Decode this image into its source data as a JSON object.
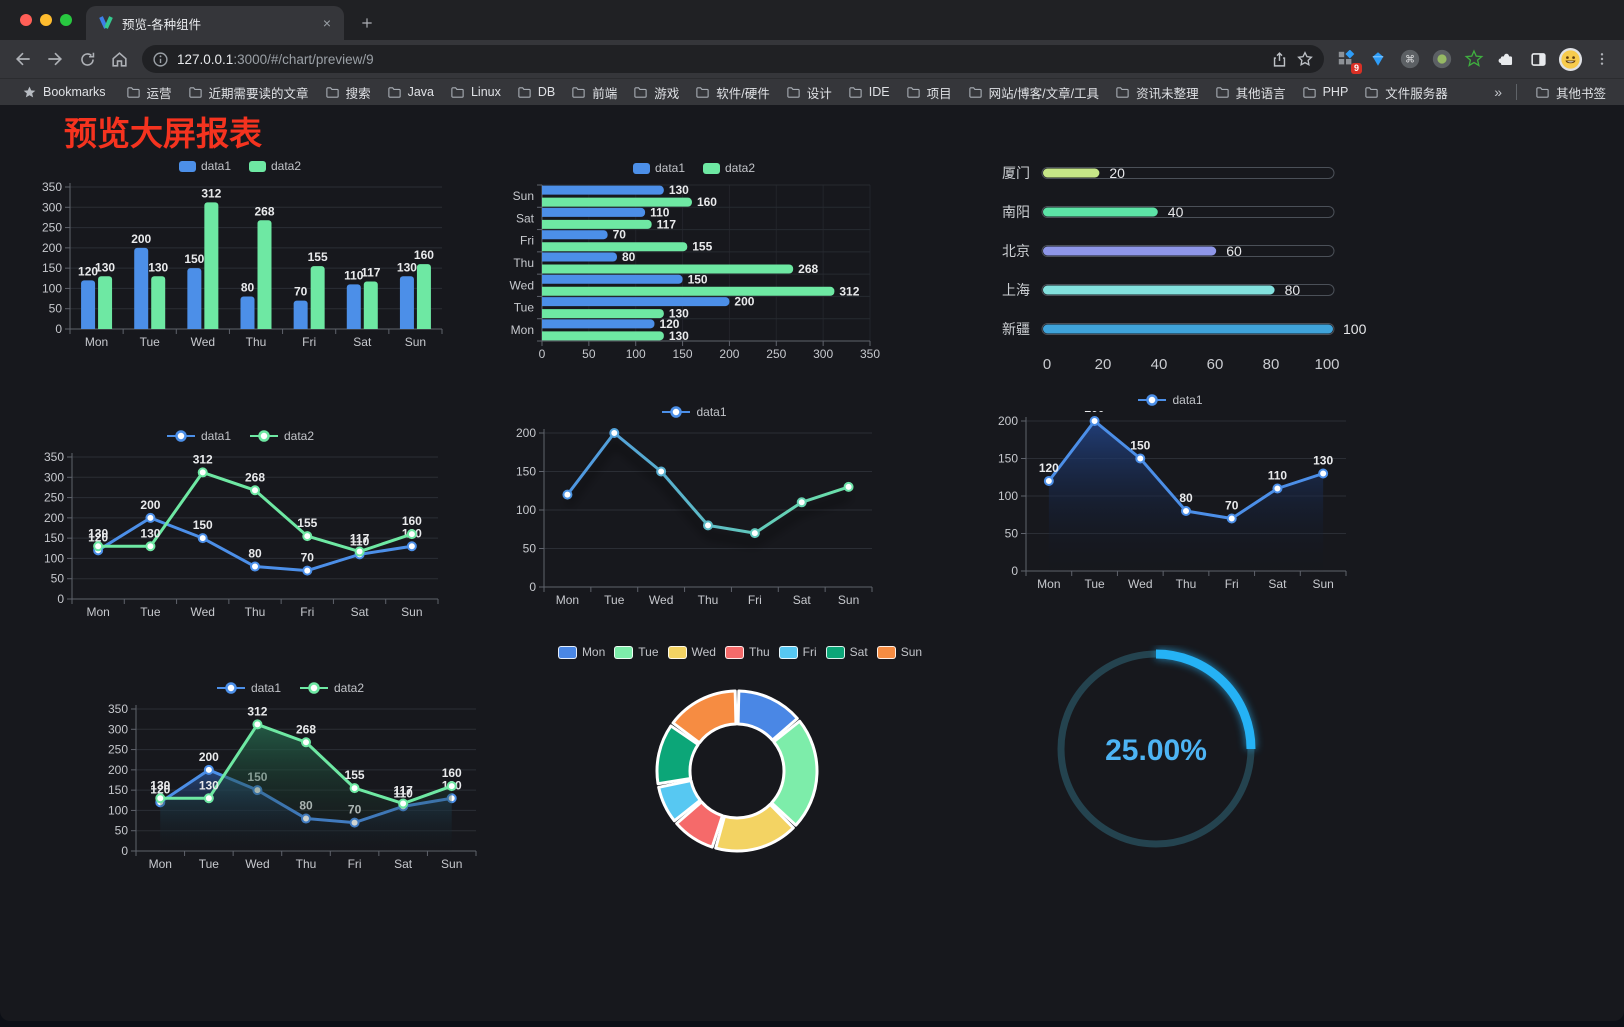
{
  "browser": {
    "traffic_lights": [
      "#ff5f57",
      "#febc2e",
      "#28c840"
    ],
    "tab": {
      "title": "预览-各种组件"
    },
    "url": {
      "host": "127.0.0.1",
      "rest": ":3000/#/chart/preview/9"
    },
    "extension_badge": "9",
    "icons": {
      "close": "×",
      "new_tab": "+",
      "menu": "⋮"
    },
    "bookmarks_label": "Bookmarks",
    "bookmark_folders": [
      "运营",
      "近期需要读的文章",
      "搜索",
      "Java",
      "Linux",
      "DB",
      "前端",
      "游戏",
      "软件/硬件",
      "设计",
      "IDE",
      "项目",
      "网站/博客/文章/工具",
      "资讯未整理",
      "其他语言",
      "PHP",
      "文件服务器"
    ],
    "bookmarks_overflow": "»",
    "other_bookmarks": "其他书签"
  },
  "page": {
    "title": "预览大屏报表",
    "title_color": "#f5331f"
  },
  "chart_data": [
    {
      "cell": "c1",
      "type": "bar",
      "title": "",
      "categories": [
        "Mon",
        "Tue",
        "Wed",
        "Thu",
        "Fri",
        "Sat",
        "Sun"
      ],
      "series": [
        {
          "name": "data1",
          "color": "#4c8fe8",
          "values": [
            120,
            200,
            150,
            80,
            70,
            110,
            130
          ]
        },
        {
          "name": "data2",
          "color": "#6ee8a3",
          "values": [
            130,
            130,
            312,
            268,
            155,
            117,
            160
          ]
        }
      ],
      "ylim": [
        0,
        350
      ],
      "yticks": [
        0,
        50,
        100,
        150,
        200,
        250,
        300,
        350
      ],
      "show_labels": true,
      "legend": {
        "icon": "rect",
        "items": [
          {
            "label": "data1",
            "color": "#4c8fe8"
          },
          {
            "label": "data2",
            "color": "#6ee8a3"
          }
        ]
      }
    },
    {
      "cell": "c2",
      "type": "bar-horizontal",
      "categories_top_to_bottom": [
        "Sun",
        "Sat",
        "Fri",
        "Thu",
        "Wed",
        "Tue",
        "Mon"
      ],
      "series": [
        {
          "name": "data1",
          "color": "#4c8fe8",
          "values": [
            130,
            110,
            70,
            80,
            150,
            200,
            120
          ]
        },
        {
          "name": "data2",
          "color": "#6ee8a3",
          "values": [
            160,
            117,
            155,
            268,
            312,
            130,
            130
          ]
        }
      ],
      "xlim": [
        0,
        350
      ],
      "xticks": [
        0,
        50,
        100,
        150,
        200,
        250,
        300,
        350
      ],
      "show_labels": true,
      "legend": {
        "icon": "rect",
        "items": [
          {
            "label": "data1",
            "color": "#4c8fe8"
          },
          {
            "label": "data2",
            "color": "#6ee8a3"
          }
        ]
      }
    },
    {
      "cell": "c3",
      "type": "progress",
      "max": 100,
      "xticks": [
        0,
        20,
        40,
        60,
        80,
        100
      ],
      "rows": [
        {
          "label": "厦门",
          "value": 20,
          "color": "#c6e687"
        },
        {
          "label": "南阳",
          "value": 40,
          "color": "#5ce3a6"
        },
        {
          "label": "北京",
          "value": 60,
          "color": "#8e96e8"
        },
        {
          "label": "上海",
          "value": 80,
          "color": "#83e1de"
        },
        {
          "label": "新疆",
          "value": 100,
          "color": "#3fa3da"
        }
      ]
    },
    {
      "cell": "c4",
      "type": "line",
      "categories": [
        "Mon",
        "Tue",
        "Wed",
        "Thu",
        "Fri",
        "Sat",
        "Sun"
      ],
      "series": [
        {
          "name": "data1",
          "color": "#4c8fe8",
          "values": [
            120,
            200,
            150,
            80,
            70,
            110,
            130
          ]
        },
        {
          "name": "data2",
          "color": "#6ee8a3",
          "values": [
            130,
            130,
            312,
            268,
            155,
            117,
            160
          ]
        }
      ],
      "ylim": [
        0,
        350
      ],
      "yticks": [
        0,
        50,
        100,
        150,
        200,
        250,
        300,
        350
      ],
      "show_labels": true,
      "legend": {
        "icon": "line",
        "items": [
          {
            "label": "data1",
            "color": "#4c8fe8"
          },
          {
            "label": "data2",
            "color": "#6ee8a3"
          }
        ]
      }
    },
    {
      "cell": "c5",
      "type": "line",
      "categories": [
        "Mon",
        "Tue",
        "Wed",
        "Thu",
        "Fri",
        "Sat",
        "Sun"
      ],
      "series": [
        {
          "name": "data1",
          "color": "#4c8fe8",
          "gradient_to": "#6ee8a3",
          "shadow": true,
          "values": [
            120,
            200,
            150,
            80,
            70,
            110,
            130
          ]
        }
      ],
      "ylim": [
        0,
        200
      ],
      "yticks": [
        0,
        50,
        100,
        150,
        200
      ],
      "show_labels": false,
      "legend": {
        "icon": "line",
        "items": [
          {
            "label": "data1",
            "color": "#4c8fe8"
          }
        ]
      }
    },
    {
      "cell": "c6",
      "type": "line",
      "categories": [
        "Mon",
        "Tue",
        "Wed",
        "Thu",
        "Fri",
        "Sat",
        "Sun"
      ],
      "series": [
        {
          "name": "data1",
          "color": "#4c8fe8",
          "area_from": "rgba(34,66,130,0.9)",
          "area_to": "rgba(14,18,28,0.03)",
          "values": [
            120,
            200,
            150,
            80,
            70,
            110,
            130
          ]
        }
      ],
      "ylim": [
        0,
        200
      ],
      "yticks": [
        0,
        50,
        100,
        150,
        200
      ],
      "show_labels": true,
      "legend": {
        "icon": "line",
        "items": [
          {
            "label": "data1",
            "color": "#4c8fe8"
          }
        ]
      }
    },
    {
      "cell": "c7",
      "type": "line",
      "categories": [
        "Mon",
        "Tue",
        "Wed",
        "Thu",
        "Fri",
        "Sat",
        "Sun"
      ],
      "series": [
        {
          "name": "data1",
          "color": "#4c8fe8",
          "area_from": "rgba(44,84,150,0.75)",
          "area_to": "rgba(16,20,30,0.03)",
          "values": [
            120,
            200,
            150,
            80,
            70,
            110,
            130
          ]
        },
        {
          "name": "data2",
          "color": "#6ee8a3",
          "area_from": "rgba(38,106,79,0.8)",
          "area_to": "rgba(18,28,24,0.03)",
          "values": [
            130,
            130,
            312,
            268,
            155,
            117,
            160
          ]
        }
      ],
      "ylim": [
        0,
        350
      ],
      "yticks": [
        0,
        50,
        100,
        150,
        200,
        250,
        300,
        350
      ],
      "show_labels": true,
      "legend": {
        "icon": "line",
        "items": [
          {
            "label": "data1",
            "color": "#4c8fe8"
          },
          {
            "label": "data2",
            "color": "#6ee8a3"
          }
        ]
      }
    },
    {
      "cell": "c8",
      "type": "pie",
      "categories": [
        "Mon",
        "Tue",
        "Wed",
        "Thu",
        "Fri",
        "Sat",
        "Sun"
      ],
      "values": [
        120,
        200,
        150,
        80,
        70,
        110,
        130
      ],
      "colors": [
        "#4a87e5",
        "#7dedaa",
        "#f3d363",
        "#f56a6a",
        "#57c8f2",
        "#0ca678",
        "#f68c42"
      ],
      "legend": {
        "icon": "rect-border",
        "items": [
          {
            "label": "Mon",
            "color": "#4a87e5"
          },
          {
            "label": "Tue",
            "color": "#7dedaa"
          },
          {
            "label": "Wed",
            "color": "#f3d363"
          },
          {
            "label": "Thu",
            "color": "#f56a6a"
          },
          {
            "label": "Fri",
            "color": "#57c8f2"
          },
          {
            "label": "Sat",
            "color": "#0ca678"
          },
          {
            "label": "Sun",
            "color": "#f68c42"
          }
        ]
      }
    },
    {
      "cell": "c9",
      "type": "gauge",
      "value": 25,
      "label": "25.00%",
      "color": "#25b2f5",
      "track_color": "#24434f",
      "text_color": "#4db4f4"
    }
  ]
}
